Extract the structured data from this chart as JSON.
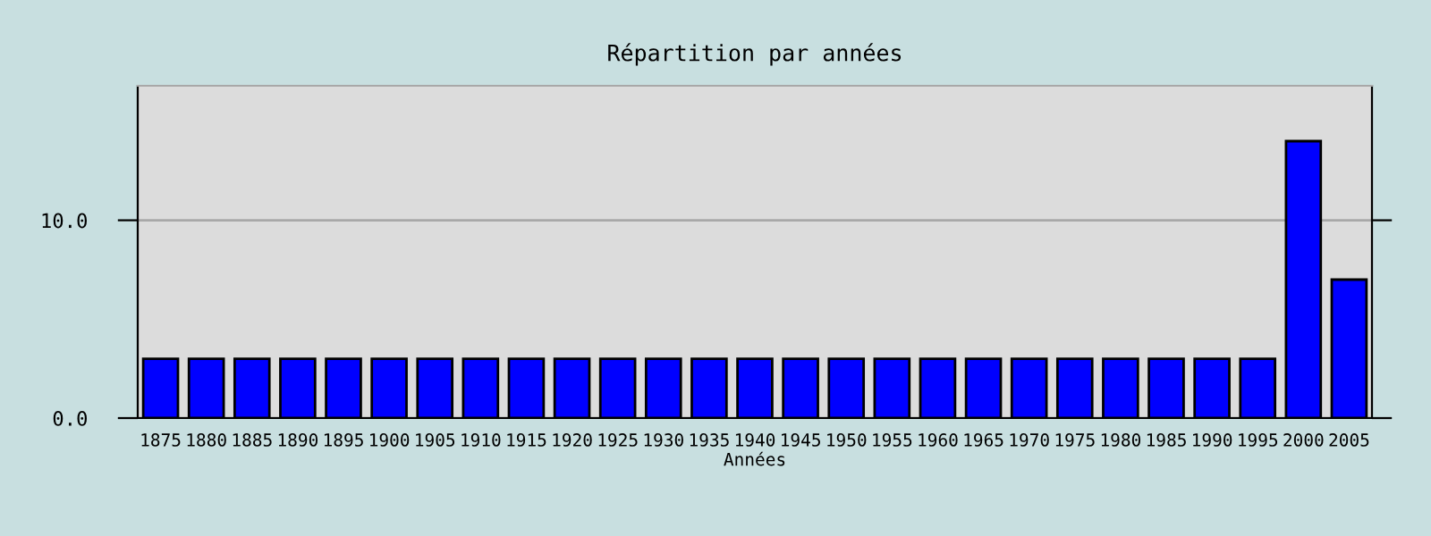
{
  "chart_data": {
    "type": "bar",
    "title": "Répartition par années",
    "xlabel": "Années",
    "categories": [
      "1875",
      "1880",
      "1885",
      "1890",
      "1895",
      "1900",
      "1905",
      "1910",
      "1915",
      "1920",
      "1925",
      "1930",
      "1935",
      "1940",
      "1945",
      "1950",
      "1955",
      "1960",
      "1965",
      "1970",
      "1975",
      "1980",
      "1985",
      "1990",
      "1995",
      "2000",
      "2005"
    ],
    "values": [
      3,
      3,
      3,
      3,
      3,
      3,
      3,
      3,
      3,
      3,
      3,
      3,
      3,
      3,
      3,
      3,
      3,
      3,
      3,
      3,
      3,
      3,
      3,
      3,
      3,
      14,
      7
    ],
    "color": "#0000ff",
    "ylim": [
      0,
      16.8
    ],
    "yticks": [
      {
        "value": 0,
        "label": "0.0"
      },
      {
        "value": 10,
        "label": "10.0"
      }
    ],
    "grid": "y"
  }
}
